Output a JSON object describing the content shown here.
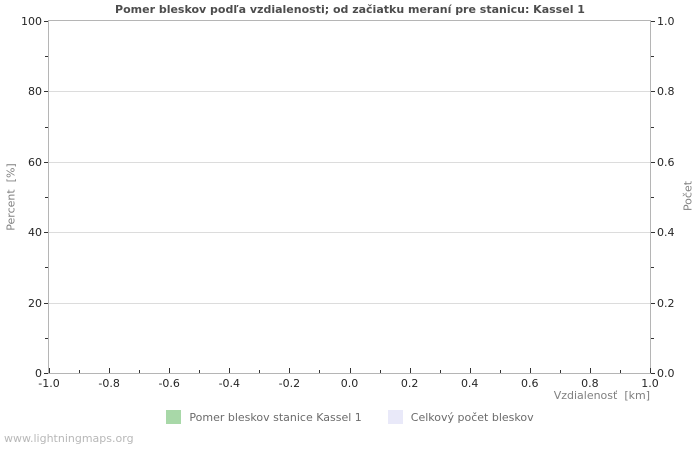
{
  "page": {
    "background": "#ffffff",
    "watermark": "www.lightningmaps.org"
  },
  "chart_data": {
    "type": "line",
    "title": "Pomer bleskov podľa vzdialenosti; od začiatku meraní pre stanicu: Kassel 1",
    "xlabel": "Vzdialenosť  [km]",
    "ylabel_left": "Percent  [%]",
    "ylabel_right": "Počet",
    "xlim": [
      -1.0,
      1.0
    ],
    "ylim_left": [
      0,
      100
    ],
    "ylim_right": [
      0.0,
      1.0
    ],
    "x_ticks": [
      "-1.0",
      "-0.8",
      "-0.6",
      "-0.4",
      "-0.2",
      "0.0",
      "0.2",
      "0.4",
      "0.6",
      "0.8",
      "1.0"
    ],
    "y_ticks_left": [
      "0",
      "20",
      "40",
      "60",
      "80",
      "100"
    ],
    "y_ticks_right": [
      "0.0",
      "0.2",
      "0.4",
      "0.6",
      "0.8",
      "1.0"
    ],
    "minor_ticks_between_majors": 1,
    "grid": "horizontal-major-only",
    "legend_position": "bottom-center",
    "series": [
      {
        "name": "Pomer bleskov stanice Kassel 1",
        "color": "#a8d8a8",
        "values": []
      },
      {
        "name": "Celkový počet bleskov",
        "color": "#e9e9f9",
        "values": []
      }
    ],
    "colors": {
      "title": "#4d4d4d",
      "tick_label": "#262626",
      "axis_label": "#808080",
      "gridline": "#dcdcdc",
      "plot_border": "#b5b5b5",
      "tick_mark": "#333333",
      "legend_text": "#6b6b6b",
      "watermark": "#b8b8b8"
    }
  }
}
